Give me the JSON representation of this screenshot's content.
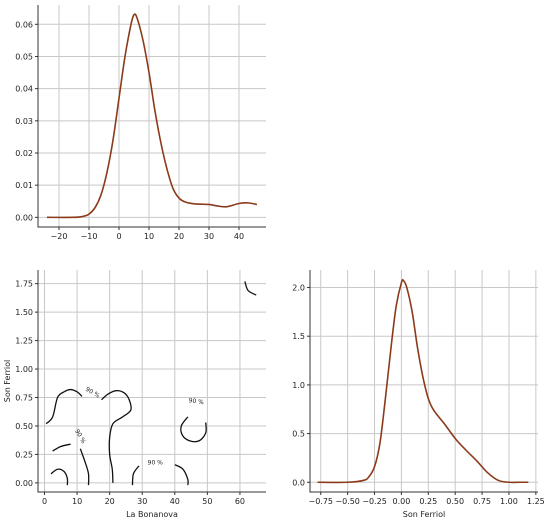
{
  "chart_data": [
    {
      "type": "line",
      "panel": "top-left",
      "xlabel": "",
      "ylabel": "",
      "xlim": [
        -27,
        49
      ],
      "ylim": [
        -0.003,
        0.066
      ],
      "grid": true,
      "x_ticks": [
        -20,
        -10,
        0,
        10,
        20,
        30,
        40
      ],
      "x_tick_labels": [
        "−20",
        "−10",
        "0",
        "10",
        "20",
        "30",
        "40"
      ],
      "y_ticks": [
        0.0,
        0.01,
        0.02,
        0.03,
        0.04,
        0.05,
        0.06
      ],
      "y_tick_labels": [
        "0.00",
        "0.01",
        "0.02",
        "0.03",
        "0.04",
        "0.05",
        "0.06"
      ],
      "series": [
        {
          "color": "#8b3a1a",
          "x": [
            -24,
            -15,
            -12,
            -10,
            -8,
            -6,
            -4,
            -2,
            0,
            2,
            4,
            5,
            6,
            8,
            10,
            12,
            14,
            16,
            18,
            20,
            22,
            25,
            30,
            33,
            36,
            40,
            43,
            46
          ],
          "y": [
            0.0,
            0.0,
            0.0003,
            0.001,
            0.003,
            0.007,
            0.014,
            0.024,
            0.037,
            0.05,
            0.06,
            0.063,
            0.062,
            0.055,
            0.045,
            0.033,
            0.023,
            0.015,
            0.009,
            0.006,
            0.0048,
            0.0042,
            0.004,
            0.0035,
            0.0033,
            0.0043,
            0.0045,
            0.004
          ]
        }
      ]
    },
    {
      "type": "contour",
      "panel": "bottom-left",
      "xlabel": "La Bonanova",
      "ylabel": "Son Ferriol",
      "xlim": [
        -2,
        68
      ],
      "ylim": [
        -0.08,
        1.87
      ],
      "grid": true,
      "x_ticks": [
        0,
        10,
        20,
        30,
        40,
        50,
        60
      ],
      "x_tick_labels": [
        "0",
        "10",
        "20",
        "30",
        "40",
        "50",
        "60"
      ],
      "y_ticks": [
        0.0,
        0.25,
        0.5,
        0.75,
        1.0,
        1.25,
        1.5,
        1.75
      ],
      "y_tick_labels": [
        "0.00",
        "0.25",
        "0.50",
        "0.75",
        "1.00",
        "1.25",
        "1.50",
        "1.75"
      ],
      "contour_labels": [
        {
          "text": "90 %",
          "x": 14.5,
          "y": 0.78,
          "angle": 30
        },
        {
          "text": "90 %",
          "x": 10.5,
          "y": 0.4,
          "angle": 60
        },
        {
          "text": "90 %",
          "x": 34,
          "y": 0.16,
          "angle": 0
        },
        {
          "text": "90 %",
          "x": 46.5,
          "y": 0.7,
          "angle": 8
        }
      ],
      "contours": [
        [
          [
            0.5,
            0.52
          ],
          [
            2.5,
            0.58
          ],
          [
            4,
            0.75
          ],
          [
            6,
            0.8
          ],
          [
            8,
            0.82
          ],
          [
            10,
            0.8
          ],
          [
            11.5,
            0.76
          ]
        ],
        [
          [
            17.5,
            0.73
          ],
          [
            19.5,
            0.78
          ],
          [
            22,
            0.81
          ],
          [
            24.5,
            0.79
          ],
          [
            26,
            0.73
          ],
          [
            26.5,
            0.64
          ],
          [
            24,
            0.58
          ],
          [
            21,
            0.52
          ],
          [
            20,
            0.4
          ],
          [
            20,
            0.25
          ],
          [
            20.8,
            0.12
          ],
          [
            21,
            0.0
          ]
        ],
        [
          [
            2.5,
            0.28
          ],
          [
            5,
            0.32
          ],
          [
            8,
            0.34
          ]
        ],
        [
          [
            2,
            0.08
          ],
          [
            4,
            0.12
          ],
          [
            6,
            0.1
          ],
          [
            7,
            0.04
          ],
          [
            7,
            -0.02
          ]
        ],
        [
          [
            11,
            0.3
          ],
          [
            12.5,
            0.18
          ],
          [
            13.5,
            0.08
          ],
          [
            13.5,
            -0.02
          ]
        ],
        [
          [
            27,
            -0.02
          ],
          [
            27.3,
            0.08
          ],
          [
            29,
            0.15
          ]
        ],
        [
          [
            40,
            0.16
          ],
          [
            42.5,
            0.12
          ],
          [
            44,
            0.03
          ],
          [
            44,
            -0.02
          ]
        ],
        [
          [
            44,
            0.58
          ],
          [
            42,
            0.5
          ],
          [
            42.3,
            0.42
          ],
          [
            44.5,
            0.37
          ],
          [
            47.5,
            0.37
          ],
          [
            49.5,
            0.44
          ],
          [
            49.5,
            0.53
          ]
        ],
        [
          [
            61.5,
            1.77
          ],
          [
            62.5,
            1.69
          ],
          [
            65,
            1.65
          ]
        ]
      ]
    },
    {
      "type": "line",
      "panel": "bottom-right",
      "xlabel": "Son Ferriol",
      "ylabel": "",
      "xlim": [
        -0.85,
        1.27
      ],
      "ylim": [
        -0.1,
        2.18
      ],
      "grid": true,
      "x_ticks": [
        -0.75,
        -0.5,
        -0.25,
        0.0,
        0.25,
        0.5,
        0.75,
        1.0,
        1.25
      ],
      "x_tick_labels": [
        "−0.75",
        "−0.50",
        "−0.25",
        "0.00",
        "0.25",
        "0.50",
        "0.75",
        "1.00",
        "1.25"
      ],
      "y_ticks": [
        0.0,
        0.5,
        1.0,
        1.5,
        2.0
      ],
      "y_tick_labels": [
        "0.0",
        "0.5",
        "1.0",
        "1.5",
        "2.0"
      ],
      "series": [
        {
          "color": "#8b3a1a",
          "x": [
            -0.78,
            -0.5,
            -0.35,
            -0.3,
            -0.25,
            -0.2,
            -0.15,
            -0.1,
            -0.05,
            0.0,
            0.02,
            0.05,
            0.1,
            0.15,
            0.2,
            0.25,
            0.3,
            0.4,
            0.5,
            0.6,
            0.7,
            0.8,
            0.9,
            1.0,
            1.1,
            1.18
          ],
          "y": [
            0.0,
            0.0,
            0.02,
            0.06,
            0.16,
            0.4,
            0.85,
            1.35,
            1.8,
            2.05,
            2.07,
            2.0,
            1.75,
            1.38,
            1.08,
            0.86,
            0.74,
            0.6,
            0.45,
            0.33,
            0.22,
            0.1,
            0.02,
            0.0,
            0.0,
            0.0
          ]
        }
      ]
    }
  ]
}
